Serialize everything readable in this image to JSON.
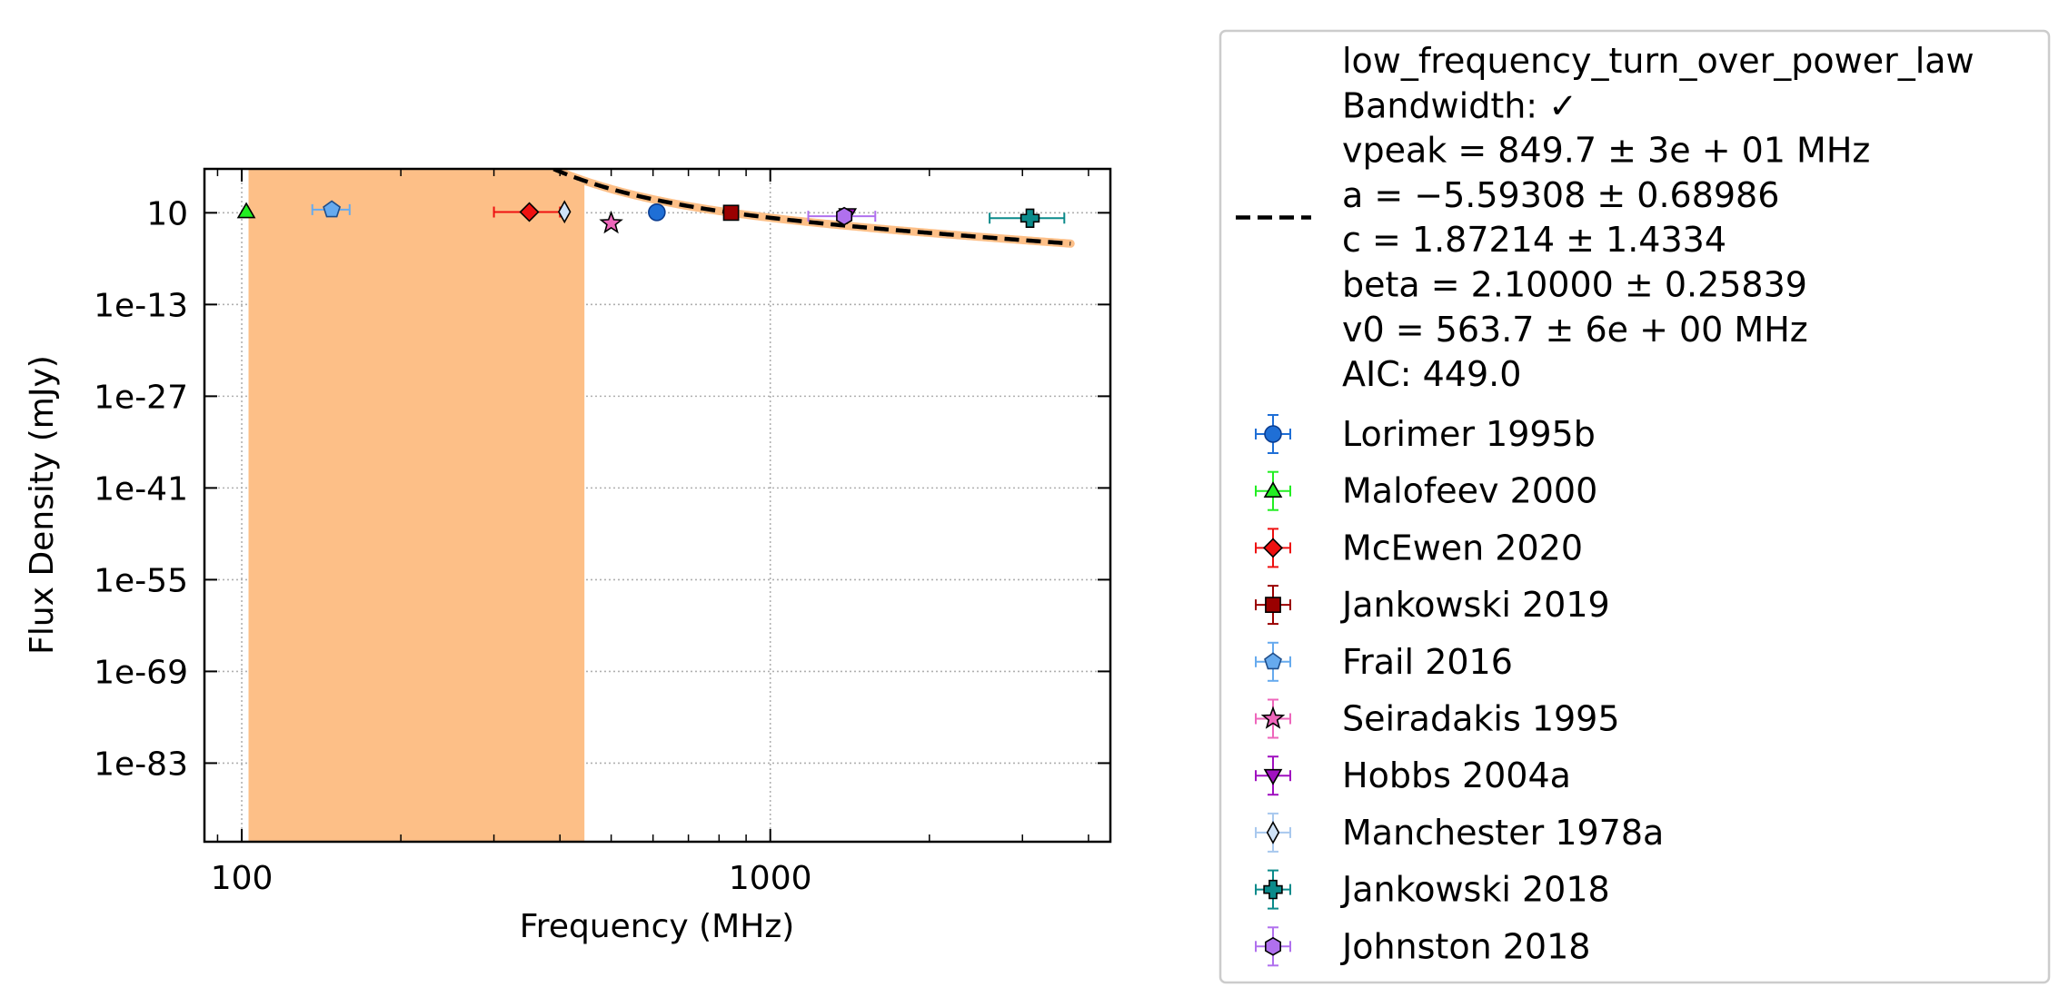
{
  "chart_data": {
    "type": "scatter",
    "xlabel": "Frequency (MHz)",
    "ylabel": "Flux Density (mJy)",
    "xscale": "log",
    "yscale": "log",
    "xlim": [
      85,
      4400
    ],
    "ylim_log10": [
      -95,
      7.7
    ],
    "x_ticks": [
      {
        "value": 100,
        "label": "100"
      },
      {
        "value": 1000,
        "label": "1000"
      }
    ],
    "y_ticks": [
      {
        "log10": 1,
        "label": "10"
      },
      {
        "log10": -13,
        "label": "1e-13"
      },
      {
        "log10": -27,
        "label": "1e-27"
      },
      {
        "log10": -41,
        "label": "1e-41"
      },
      {
        "log10": -55,
        "label": "1e-55"
      },
      {
        "log10": -69,
        "label": "1e-69"
      },
      {
        "log10": -83,
        "label": "1e-83"
      }
    ],
    "grid": true,
    "legend_position": "outside-right",
    "fit": {
      "name": "low_frequency_turn_over_power_law",
      "lines": [
        "low_frequency_turn_over_power_law",
        "Bandwidth: ✓",
        "vpeak = 849.7 ± 3e + 01 MHz",
        "a = −5.59308 ± 0.68986",
        "c = 1.87214 ± 1.4334",
        "beta = 2.10000 ± 0.25839",
        "v0 = 563.7 ± 6e + 00 MHz",
        "AIC: 449.0"
      ],
      "params": {
        "vpeak": 849.7,
        "a": -5.59308,
        "c": 1.87214,
        "beta": 2.1,
        "v0": 563.7
      },
      "x_range": [
        103,
        3700
      ],
      "style": "dashed",
      "color": "#000000",
      "shade_color": "#fdbf87",
      "shade_x_range": [
        103,
        445
      ]
    },
    "series": [
      {
        "name": "Lorimer 1995b",
        "marker": "circle",
        "color": "#1f6fd6",
        "edge": "#0b3d91",
        "errcolor": "#1f6fd6",
        "points": [
          {
            "x": 610,
            "y": 12.0,
            "xerr": 0
          }
        ]
      },
      {
        "name": "Malofeev 2000",
        "marker": "triangle-up",
        "color": "#22ee22",
        "edge": "#000000",
        "errcolor": "#22ee22",
        "points": [
          {
            "x": 102,
            "y": 15.0,
            "xerr": 0
          }
        ]
      },
      {
        "name": "McEwen 2020",
        "marker": "diamond",
        "color": "#ee1111",
        "edge": "#000000",
        "errcolor": "#ee1111",
        "points": [
          {
            "x": 350,
            "y": 13.0,
            "xerr": 50
          }
        ]
      },
      {
        "name": "Jankowski 2019",
        "marker": "square",
        "color": "#9a0000",
        "edge": "#000000",
        "errcolor": "#9a0000",
        "points": [
          {
            "x": 843,
            "y": 10.0,
            "xerr": 0
          }
        ]
      },
      {
        "name": "Frail 2016",
        "marker": "pentagon",
        "color": "#66aaee",
        "edge": "#1f4e8a",
        "errcolor": "#66aaee",
        "points": [
          {
            "x": 148,
            "y": 30.0,
            "xerr": 12
          }
        ]
      },
      {
        "name": "Seiradakis 1995",
        "marker": "star",
        "color": "#ee66bb",
        "edge": "#000000",
        "errcolor": "#ee66bb",
        "points": [
          {
            "x": 500,
            "y": 0.25,
            "xerr": 0
          }
        ]
      },
      {
        "name": "Hobbs 2004a",
        "marker": "triangle-down",
        "color": "#a010c0",
        "edge": "#000000",
        "errcolor": "#a010c0",
        "points": [
          {
            "x": 1400,
            "y": 5.0,
            "xerr": 0
          }
        ]
      },
      {
        "name": "Manchester 1978a",
        "marker": "thin-diamond",
        "color": "#cfe2f7",
        "edge": "#000000",
        "errcolor": "#a8c8ee",
        "points": [
          {
            "x": 408,
            "y": 14.0,
            "xerr": 0
          }
        ]
      },
      {
        "name": "Jankowski 2018",
        "marker": "plus",
        "color": "#0b8b8b",
        "edge": "#000000",
        "errcolor": "#0b8b8b",
        "points": [
          {
            "x": 3100,
            "y": 1.5,
            "xerr": 500
          }
        ]
      },
      {
        "name": "Johnston 2018",
        "marker": "hexagon",
        "color": "#b070ee",
        "edge": "#000000",
        "errcolor": "#b070ee",
        "points": [
          {
            "x": 1380,
            "y": 3.0,
            "xerr": 200
          }
        ]
      }
    ]
  }
}
